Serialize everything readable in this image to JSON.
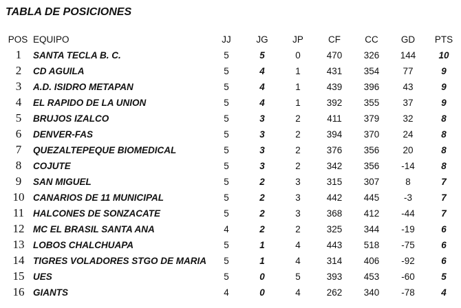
{
  "title": "TABLA DE POSICIONES",
  "table": {
    "columns": [
      "POS",
      "EQUIPO",
      "JJ",
      "JG",
      "JP",
      "CF",
      "CC",
      "GD",
      "PTS"
    ],
    "rows": [
      [
        "1",
        "SANTA TECLA B. C.",
        "5",
        "5",
        "0",
        "470",
        "326",
        "144",
        "10"
      ],
      [
        "2",
        "CD AGUILA",
        "5",
        "4",
        "1",
        "431",
        "354",
        "77",
        "9"
      ],
      [
        "3",
        "A.D. ISIDRO METAPAN",
        "5",
        "4",
        "1",
        "439",
        "396",
        "43",
        "9"
      ],
      [
        "4",
        "EL RAPIDO DE LA UNION",
        "5",
        "4",
        "1",
        "392",
        "355",
        "37",
        "9"
      ],
      [
        "5",
        "BRUJOS IZALCO",
        "5",
        "3",
        "2",
        "411",
        "379",
        "32",
        "8"
      ],
      [
        "6",
        "DENVER-FAS",
        "5",
        "3",
        "2",
        "394",
        "370",
        "24",
        "8"
      ],
      [
        "7",
        "QUEZALTEPEQUE BIOMEDICAL",
        "5",
        "3",
        "2",
        "376",
        "356",
        "20",
        "8"
      ],
      [
        "8",
        "COJUTE",
        "5",
        "3",
        "2",
        "342",
        "356",
        "-14",
        "8"
      ],
      [
        "9",
        "SAN MIGUEL",
        "5",
        "2",
        "3",
        "315",
        "307",
        "8",
        "7"
      ],
      [
        "10",
        "CANARIOS DE 11 MUNICIPAL",
        "5",
        "2",
        "3",
        "442",
        "445",
        "-3",
        "7"
      ],
      [
        "11",
        "HALCONES DE SONZACATE",
        "5",
        "2",
        "3",
        "368",
        "412",
        "-44",
        "7"
      ],
      [
        "12",
        "MC EL BRASIL SANTA ANA",
        "4",
        "2",
        "2",
        "325",
        "344",
        "-19",
        "6"
      ],
      [
        "13",
        "LOBOS CHALCHUAPA",
        "5",
        "1",
        "4",
        "443",
        "518",
        "-75",
        "6"
      ],
      [
        "14",
        "TIGRES VOLADORES STGO DE MARIA",
        "5",
        "1",
        "4",
        "314",
        "406",
        "-92",
        "6"
      ],
      [
        "15",
        "UES",
        "5",
        "0",
        "5",
        "393",
        "453",
        "-60",
        "5"
      ],
      [
        "16",
        "GIANTS",
        "4",
        "0",
        "4",
        "262",
        "340",
        "-78",
        "4"
      ]
    ]
  }
}
